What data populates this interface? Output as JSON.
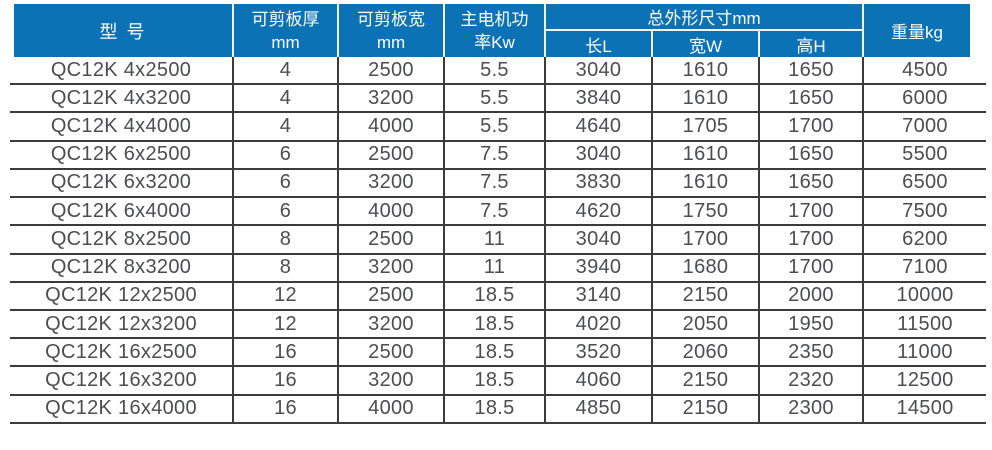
{
  "table": {
    "header": {
      "model": "型 号",
      "thickness_line1": "可剪板厚",
      "thickness_line2": "mm",
      "width_line1": "可剪板宽",
      "width_line2": "mm",
      "power_line1": "主电机功",
      "power_line2": "率Kw",
      "dimensions_group": "总外形尺寸mm",
      "length": "长L",
      "width_w": "宽W",
      "height_h": "高H",
      "weight": "重量kg"
    },
    "rows": [
      [
        "QC12K 4x2500",
        "4",
        "2500",
        "5.5",
        "3040",
        "1610",
        "1650",
        "4500"
      ],
      [
        "QC12K 4x3200",
        "4",
        "3200",
        "5.5",
        "3840",
        "1610",
        "1650",
        "6000"
      ],
      [
        "QC12K 4x4000",
        "4",
        "4000",
        "5.5",
        "4640",
        "1705",
        "1700",
        "7000"
      ],
      [
        "QC12K 6x2500",
        "6",
        "2500",
        "7.5",
        "3040",
        "1610",
        "1650",
        "5500"
      ],
      [
        "QC12K 6x3200",
        "6",
        "3200",
        "7.5",
        "3830",
        "1610",
        "1650",
        "6500"
      ],
      [
        "QC12K 6x4000",
        "6",
        "4000",
        "7.5",
        "4620",
        "1750",
        "1700",
        "7500"
      ],
      [
        "QC12K 8x2500",
        "8",
        "2500",
        "11",
        "3040",
        "1700",
        "1700",
        "6200"
      ],
      [
        "QC12K 8x3200",
        "8",
        "3200",
        "11",
        "3940",
        "1680",
        "1700",
        "7100"
      ],
      [
        "QC12K 12x2500",
        "12",
        "2500",
        "18.5",
        "3140",
        "2150",
        "2000",
        "10000"
      ],
      [
        "QC12K 12x3200",
        "12",
        "3200",
        "18.5",
        "4020",
        "2050",
        "1950",
        "11500"
      ],
      [
        "QC12K 16x2500",
        "16",
        "2500",
        "18.5",
        "3520",
        "2060",
        "2350",
        "11000"
      ],
      [
        "QC12K 16x3200",
        "16",
        "3200",
        "18.5",
        "4060",
        "2150",
        "2320",
        "12500"
      ],
      [
        "QC12K 16x4000",
        "16",
        "4000",
        "18.5",
        "4850",
        "2150",
        "2300",
        "14500"
      ]
    ]
  },
  "colors": {
    "header_bg": "#0c72b6",
    "header_text": "#ffffff",
    "header_separator": "#f2f2f2",
    "grid_line": "#3b3b3b",
    "body_text": "#4c4d4f"
  }
}
